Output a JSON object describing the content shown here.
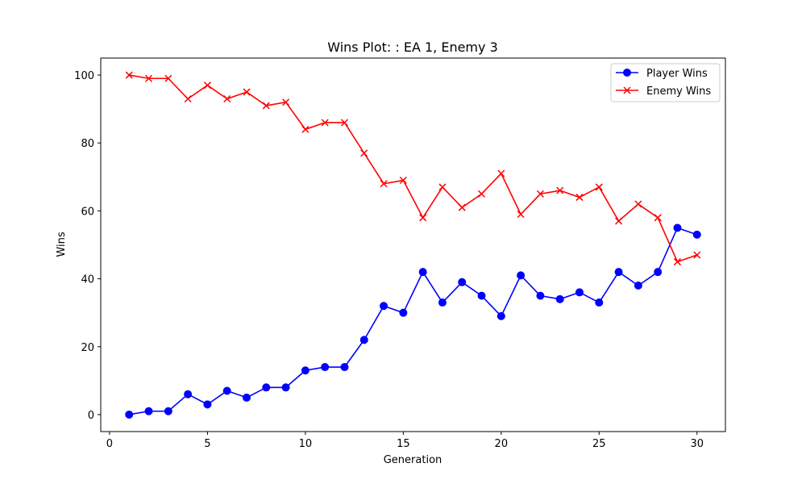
{
  "chart_data": {
    "type": "line",
    "title": "Wins Plot: : EA 1, Enemy 3",
    "xlabel": "Generation",
    "ylabel": "Wins",
    "xlim": [
      -0.45,
      31.45
    ],
    "ylim": [
      -5,
      105
    ],
    "xticks": [
      0,
      5,
      10,
      15,
      20,
      25,
      30
    ],
    "yticks": [
      0,
      20,
      40,
      60,
      80,
      100
    ],
    "grid": false,
    "legend_position": "top-right",
    "x": [
      1,
      2,
      3,
      4,
      5,
      6,
      7,
      8,
      9,
      10,
      11,
      12,
      13,
      14,
      15,
      16,
      17,
      18,
      19,
      20,
      21,
      22,
      23,
      24,
      25,
      26,
      27,
      28,
      29,
      30
    ],
    "series": [
      {
        "name": "Player Wins",
        "color": "#0000ff",
        "marker": "circle",
        "values": [
          0,
          1,
          1,
          6,
          3,
          7,
          5,
          8,
          8,
          13,
          14,
          14,
          22,
          32,
          30,
          42,
          33,
          39,
          35,
          29,
          41,
          35,
          34,
          36,
          33,
          42,
          38,
          42,
          55,
          53
        ]
      },
      {
        "name": "Enemy Wins",
        "color": "#ff0000",
        "marker": "x",
        "values": [
          100,
          99,
          99,
          93,
          97,
          93,
          95,
          91,
          92,
          84,
          86,
          86,
          77,
          68,
          69,
          58,
          67,
          61,
          65,
          71,
          59,
          65,
          66,
          64,
          67,
          57,
          62,
          58,
          45,
          47
        ]
      }
    ]
  }
}
